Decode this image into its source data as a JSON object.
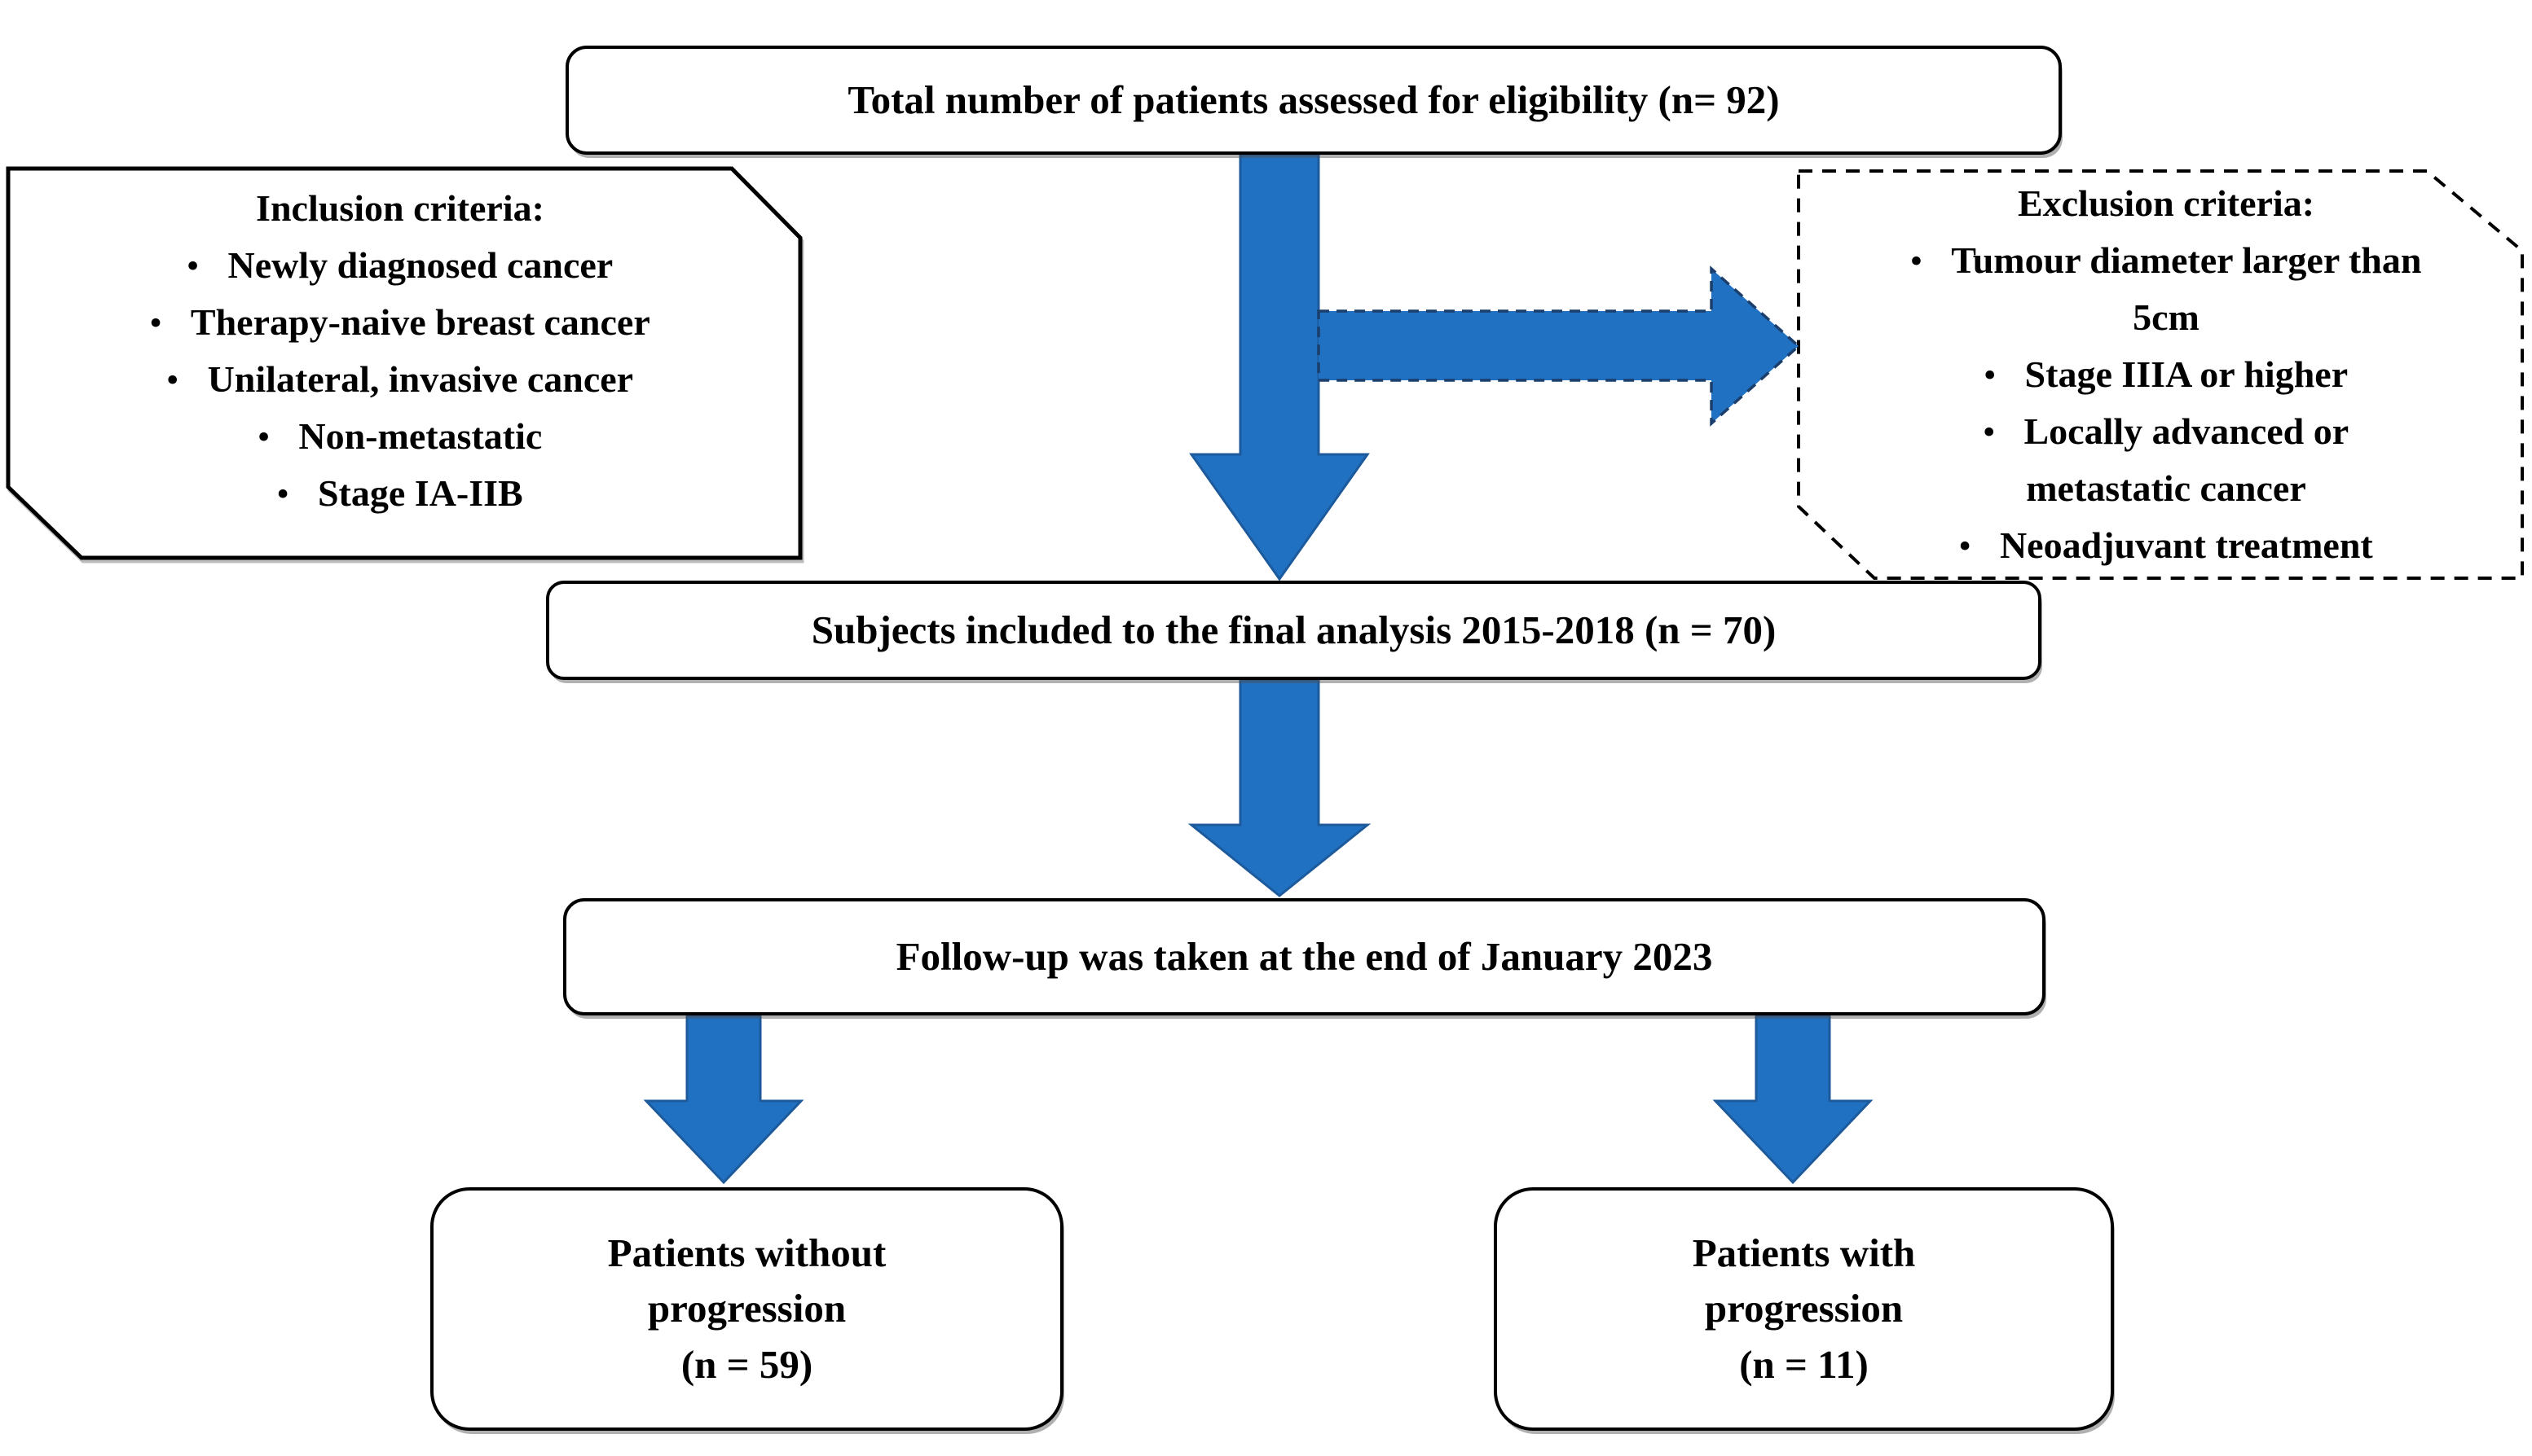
{
  "bullet_char": "•",
  "colors": {
    "arrow_fill": "#2171c3",
    "arrow_outline": "#1c5a9c",
    "dashed_arrow_outline": "#1b3e6b",
    "box_border": "#000000",
    "background": "#ffffff",
    "text": "#000000"
  },
  "boxes": {
    "eligibility": {
      "label": "Total number of patients assessed for eligibility (n= 92)"
    },
    "inclusion": {
      "title": "Inclusion criteria:",
      "items": [
        "Newly diagnosed cancer",
        "Therapy-naive breast cancer",
        "Unilateral, invasive cancer",
        "Non-metastatic",
        "Stage IA-IIB"
      ]
    },
    "exclusion": {
      "title": "Exclusion criteria:",
      "items": [
        "Tumour diameter larger than 5cm",
        "Stage IIIA or higher",
        "Locally advanced or metastatic cancer",
        "Neoadjuvant treatment"
      ]
    },
    "final_analysis": {
      "label": "Subjects included to the final analysis 2015-2018 (n = 70)"
    },
    "follow_up": {
      "label": "Follow-up was taken at the end of January 2023"
    },
    "without_progression": {
      "lines": [
        "Patients without",
        "progression",
        "(n = 59)"
      ]
    },
    "with_progression": {
      "lines": [
        "Patients with",
        "progression",
        "(n = 11)"
      ]
    }
  }
}
